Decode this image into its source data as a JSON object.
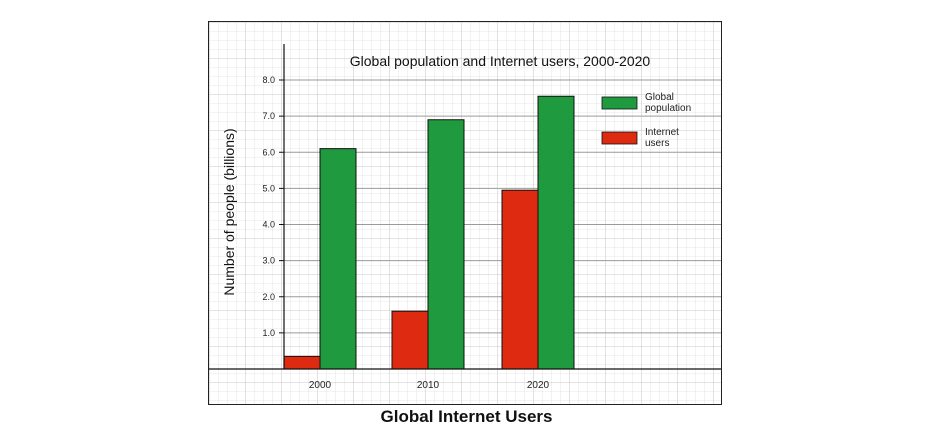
{
  "chart_data": {
    "type": "bar",
    "title": "Global population and Internet users, 2000-2020",
    "xlabel": "",
    "ylabel": "Number of people (billions)",
    "categories": [
      "2000",
      "2010",
      "2020"
    ],
    "series": [
      {
        "name": "Internet users",
        "values": [
          0.35,
          1.6,
          4.95
        ],
        "color": "#dd2a10"
      },
      {
        "name": "Global population",
        "values": [
          6.1,
          6.9,
          7.55
        ],
        "color": "#1f9a3e"
      }
    ],
    "ylim": [
      0,
      8.0
    ],
    "yticks": [
      "1.0",
      "2.0",
      "3.0",
      "4.0",
      "5.0",
      "6.0",
      "7.0",
      "8.0"
    ],
    "legend": [
      {
        "lines": [
          "Global",
          "population"
        ],
        "color": "#1f9a3e"
      },
      {
        "lines": [
          "Internet",
          "users"
        ],
        "color": "#dd2a10"
      }
    ],
    "legend_position": "top-right",
    "grid": true
  },
  "caption": "Global Internet Users"
}
